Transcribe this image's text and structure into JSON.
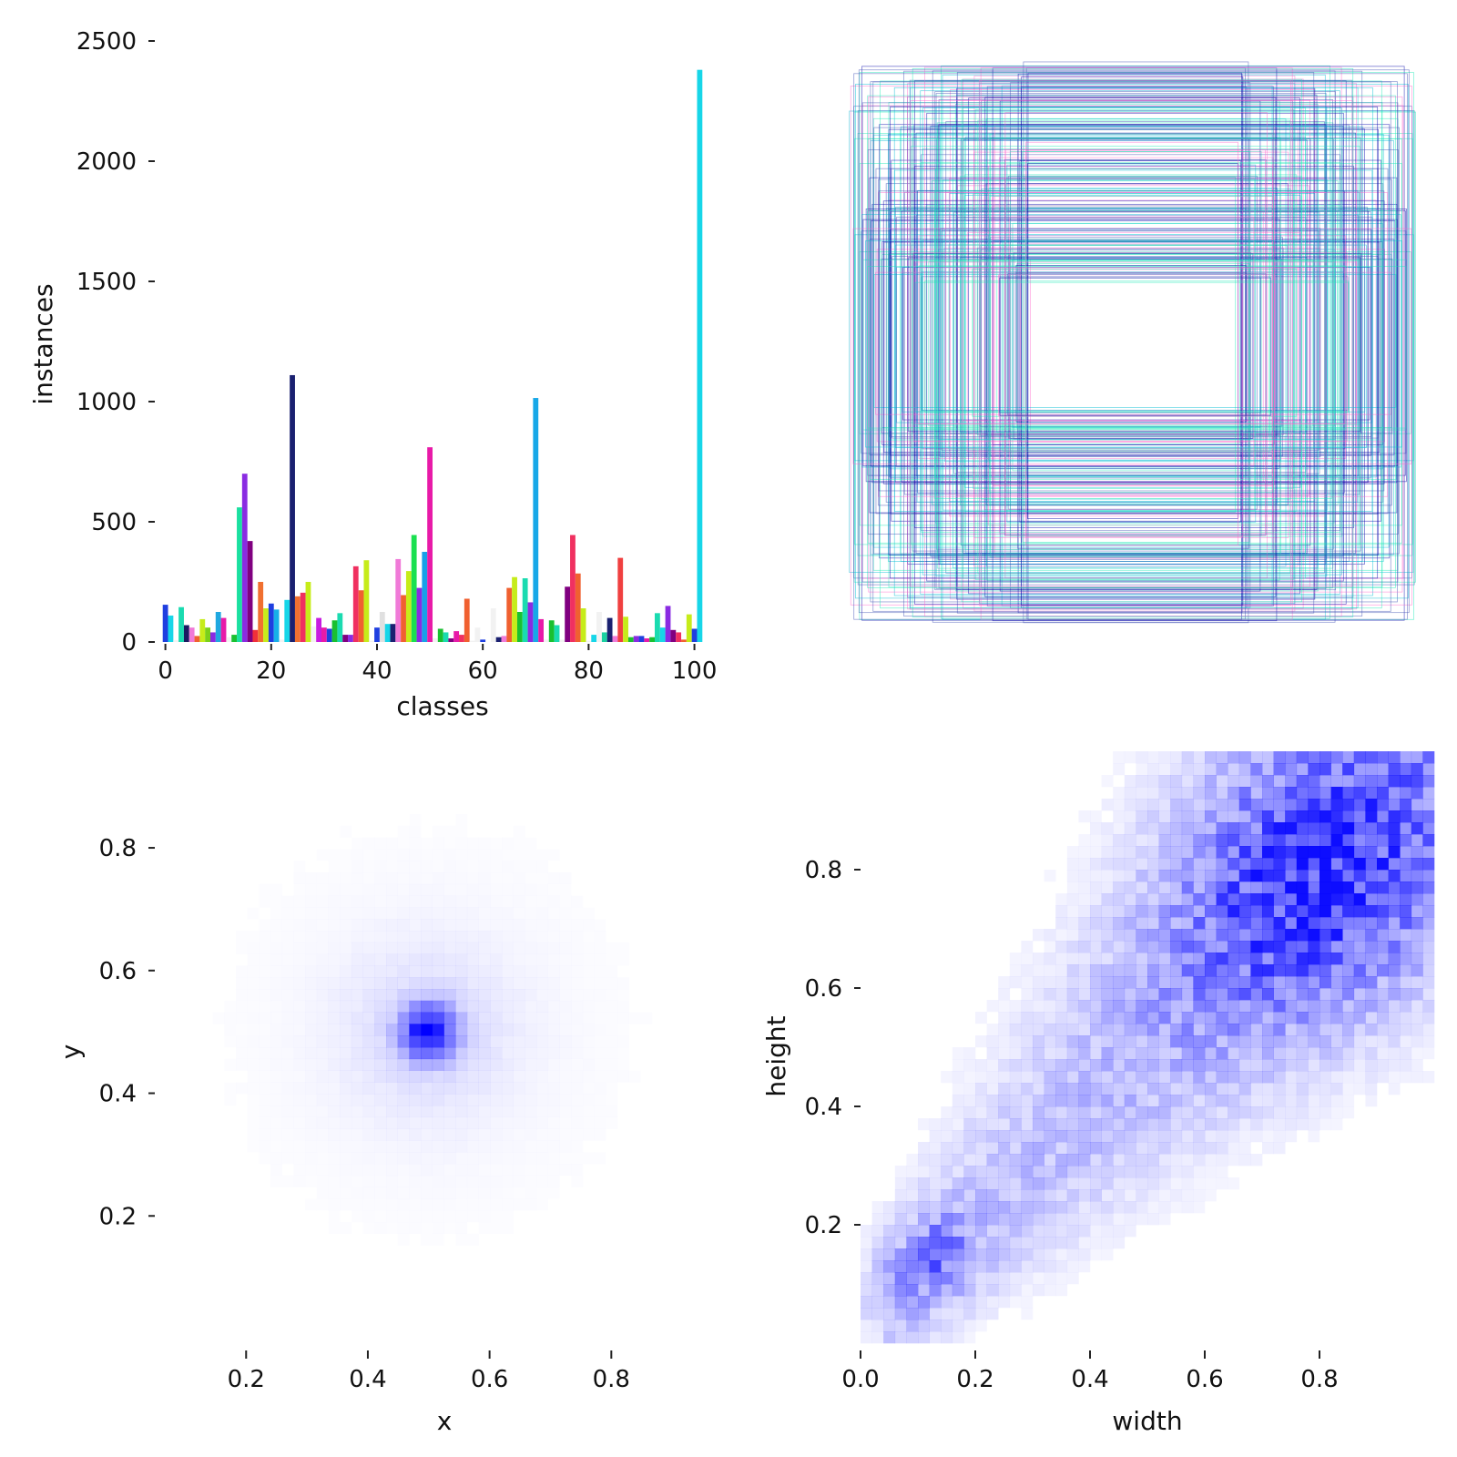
{
  "chart_data": [
    {
      "type": "bar",
      "xlabel": "classes",
      "ylabel": "instances",
      "xlim": [
        -2,
        103
      ],
      "ylim": [
        0,
        2500
      ],
      "xticks": [
        "0",
        "20",
        "40",
        "60",
        "80",
        "100"
      ],
      "yticks": [
        "0",
        "500",
        "1000",
        "1500",
        "2000",
        "2500"
      ],
      "grid": false,
      "x": [
        0,
        1,
        2,
        3,
        4,
        5,
        6,
        7,
        8,
        9,
        10,
        11,
        12,
        13,
        14,
        15,
        16,
        17,
        18,
        19,
        20,
        21,
        22,
        23,
        24,
        25,
        26,
        27,
        28,
        29,
        30,
        31,
        32,
        33,
        34,
        35,
        36,
        37,
        38,
        39,
        40,
        41,
        42,
        43,
        44,
        45,
        46,
        47,
        48,
        49,
        50,
        51,
        52,
        53,
        54,
        55,
        56,
        57,
        58,
        59,
        60,
        61,
        62,
        63,
        64,
        65,
        66,
        67,
        68,
        69,
        70,
        71,
        72,
        73,
        74,
        75,
        76,
        77,
        78,
        79,
        80,
        81,
        82,
        83,
        84,
        85,
        86,
        87,
        88,
        89,
        90,
        91,
        92,
        93,
        94,
        95,
        96,
        97,
        98,
        99,
        100,
        101
      ],
      "values": [
        155,
        110,
        8,
        145,
        70,
        60,
        25,
        95,
        60,
        40,
        125,
        100,
        20,
        30,
        560,
        700,
        420,
        50,
        250,
        140,
        160,
        135,
        10,
        175,
        1110,
        190,
        205,
        250,
        65,
        100,
        60,
        55,
        90,
        120,
        30,
        30,
        315,
        215,
        340,
        5,
        60,
        125,
        75,
        75,
        345,
        195,
        295,
        445,
        225,
        375,
        810,
        15,
        55,
        40,
        15,
        45,
        30,
        180,
        5,
        60,
        10,
        0,
        140,
        20,
        25,
        225,
        270,
        125,
        265,
        165,
        1015,
        95,
        10,
        90,
        70,
        10,
        230,
        445,
        285,
        140,
        5,
        30,
        125,
        40,
        100,
        25,
        350,
        105,
        20,
        25,
        25,
        15,
        20,
        120,
        60,
        150,
        50,
        40,
        10,
        115,
        55,
        2380
      ],
      "colors": [
        "#1f3fe0",
        "#17d6e8",
        "#f2f2f2",
        "#1adbb0",
        "#1a1a60",
        "#f07ad8",
        "#f06030",
        "#c6ec1a",
        "#7ad01a",
        "#8a2be2",
        "#1fa8e0",
        "#e81aa8",
        "#f2f2f2",
        "#1ac030",
        "#1ae0a0",
        "#8a2be2",
        "#800080",
        "#f0303a",
        "#f07030",
        "#c6ec1a",
        "#1f3fe0",
        "#17b0e8",
        "#f2f2f2",
        "#17d6e8",
        "#1a2070",
        "#f07030",
        "#f03060",
        "#c6ec1a",
        "#f2f2f2",
        "#c81ae0",
        "#e81aa8",
        "#1f3fe0",
        "#1ac030",
        "#1adbb0",
        "#800080",
        "#8a2be2",
        "#f03060",
        "#f06030",
        "#c6ec1a",
        "#f2f2f2",
        "#1f3fe0",
        "#e0e0e0",
        "#17d6e8",
        "#1a2070",
        "#f07ad8",
        "#f06030",
        "#c6ec1a",
        "#1ae050",
        "#8a2be2",
        "#17a0e8",
        "#e81aa8",
        "#f2f2f2",
        "#1ac030",
        "#1adbb0",
        "#800080",
        "#e81aa8",
        "#f03060",
        "#f06030",
        "#f2f2f2",
        "#f2f2f2",
        "#1f3fe0",
        "#17d6e8",
        "#f2f2f2",
        "#1a2070",
        "#f07ad8",
        "#f06030",
        "#c6ec1a",
        "#1ac030",
        "#1adbb0",
        "#8a2be2",
        "#17a8e8",
        "#e81aa8",
        "#f2f2f2",
        "#1ac030",
        "#1adbb0",
        "#f2f2f2",
        "#800080",
        "#f03060",
        "#f06030",
        "#c6ec1a",
        "#f2f2f2",
        "#17d6e8",
        "#f2f2f2",
        "#1ad0a0",
        "#1a2070",
        "#f07ad8",
        "#f04040",
        "#c6ec1a",
        "#1ac030",
        "#8a2be2",
        "#1f3fe0",
        "#e81aa8",
        "#1ac030",
        "#1adbb0",
        "#17d6e8",
        "#8a2be2",
        "#800080",
        "#f03060",
        "#f06030",
        "#c6ec1a",
        "#1f3fe0",
        "#17d6e8"
      ]
    },
    {
      "type": "other",
      "description_colors": [
        "#0000aa",
        "#00bcd4",
        "#1de9b6",
        "#3f51b5",
        "#ff66cc"
      ],
      "grid": false
    },
    {
      "type": "heatmap",
      "xlabel": "x",
      "ylabel": "y",
      "xlim": [
        0.05,
        1.0
      ],
      "ylim": [
        0.0,
        0.95
      ],
      "xticks": [
        "0.2",
        "0.4",
        "0.6",
        "0.8"
      ],
      "yticks": [
        "0.2",
        "0.4",
        "0.6",
        "0.8"
      ],
      "peak": {
        "x": 0.5,
        "y": 0.5
      },
      "color": "#0000ff",
      "grid": false
    },
    {
      "type": "heatmap",
      "xlabel": "width",
      "ylabel": "height",
      "xlim": [
        0.0,
        1.0
      ],
      "ylim": [
        0.0,
        1.0
      ],
      "xticks": [
        "0.0",
        "0.2",
        "0.4",
        "0.6",
        "0.8"
      ],
      "yticks": [
        "0.2",
        "0.4",
        "0.6",
        "0.8"
      ],
      "trend": "positive diagonal, densest near width 0.8 / height 0.8",
      "color": "#0000ff",
      "grid": false
    }
  ]
}
